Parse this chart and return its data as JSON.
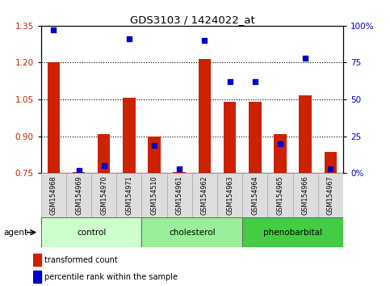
{
  "title": "GDS3103 / 1424022_at",
  "samples": [
    "GSM154968",
    "GSM154969",
    "GSM154970",
    "GSM154971",
    "GSM154510",
    "GSM154961",
    "GSM154962",
    "GSM154963",
    "GSM154964",
    "GSM154965",
    "GSM154966",
    "GSM154967"
  ],
  "transformed_count": [
    1.2,
    0.755,
    0.91,
    1.055,
    0.9,
    0.755,
    1.215,
    1.04,
    1.04,
    0.91,
    1.065,
    0.835
  ],
  "percentile_rank": [
    97,
    2,
    5,
    91,
    19,
    3,
    90,
    62,
    62,
    20,
    78,
    3
  ],
  "baseline": 0.75,
  "ylim_left": [
    0.75,
    1.35
  ],
  "ylim_right": [
    0,
    100
  ],
  "yticks_left": [
    0.75,
    0.9,
    1.05,
    1.2,
    1.35
  ],
  "yticks_right": [
    0,
    25,
    50,
    75,
    100
  ],
  "ytick_labels_right": [
    "0%",
    "25",
    "50",
    "75",
    "100%"
  ],
  "groups": [
    {
      "label": "control",
      "indices": [
        0,
        1,
        2,
        3
      ],
      "color": "#ccffcc"
    },
    {
      "label": "cholesterol",
      "indices": [
        4,
        5,
        6,
        7
      ],
      "color": "#99ee99"
    },
    {
      "label": "phenobarbital",
      "indices": [
        8,
        9,
        10,
        11
      ],
      "color": "#44cc44"
    }
  ],
  "bar_color": "#cc2200",
  "dot_color": "#0000cc",
  "bar_width": 0.5,
  "tick_label_color_left": "#cc2200",
  "tick_label_color_right": "#0000cc",
  "background_color": "#ffffff",
  "plot_bg_color": "#ffffff",
  "group_label": "agent",
  "legend_items": [
    {
      "label": "transformed count",
      "color": "#cc2200"
    },
    {
      "label": "percentile rank within the sample",
      "color": "#0000cc"
    }
  ],
  "xtick_box_color": "#dddddd",
  "xtick_box_edge": "#aaaaaa"
}
